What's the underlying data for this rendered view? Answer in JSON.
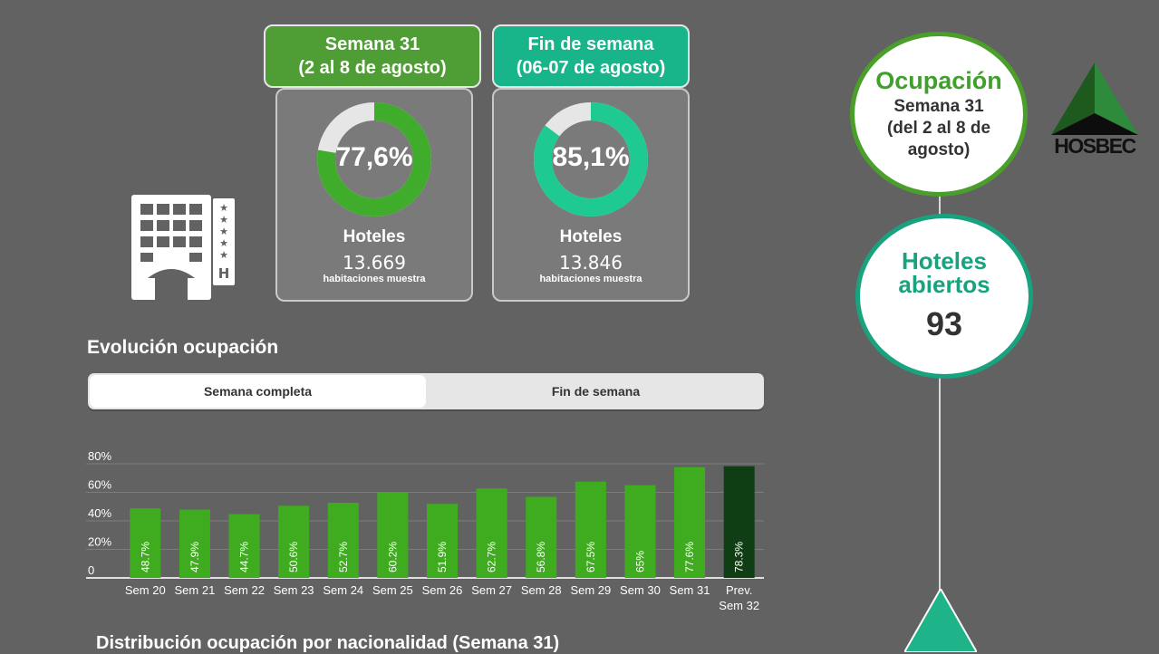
{
  "header": {
    "week": {
      "line1": "Semana 31",
      "line2": "(2 al 8 de agosto)"
    },
    "weekend": {
      "line1": "Fin de semana",
      "line2": "(06-07 de agosto)"
    }
  },
  "cards": [
    {
      "percent_label": "77,6%",
      "percent": 77.6,
      "title": "Hoteles",
      "rooms": "13.669",
      "rooms_label": "habitaciones muestra",
      "color": "#3fac2b"
    },
    {
      "percent_label": "85,1%",
      "percent": 85.1,
      "title": "Hoteles",
      "rooms": "13.846",
      "rooms_label": "habitaciones muestra",
      "color": "#1ec992"
    }
  ],
  "evolution": {
    "title": "Evolución ocupación",
    "tabs": [
      {
        "label": "Semana completa",
        "active": true
      },
      {
        "label": "Fin de semana",
        "active": false
      }
    ]
  },
  "chart_data": {
    "type": "bar",
    "categories": [
      "Sem 20",
      "Sem 21",
      "Sem 22",
      "Sem 23",
      "Sem 24",
      "Sem 25",
      "Sem 26",
      "Sem 27",
      "Sem 28",
      "Sem 29",
      "Sem 30",
      "Sem 31",
      "Prev. Sem 32"
    ],
    "values": [
      48.7,
      47.9,
      44.7,
      50.6,
      52.7,
      60.2,
      51.9,
      62.7,
      56.8,
      67.5,
      65,
      77.6,
      78.3
    ],
    "value_labels": [
      "48.7%",
      "47.9%",
      "44.7%",
      "50.6%",
      "52.7%",
      "60.2%",
      "51.9%",
      "62.7%",
      "56.8%",
      "67.5%",
      "65%",
      "77.6%",
      "78.3%"
    ],
    "yticks": [
      "0",
      "20%",
      "40%",
      "60%",
      "80%"
    ],
    "ylim": [
      0,
      80
    ],
    "colors": {
      "bar": "#3fac1f",
      "forecast": "#0f3d14"
    },
    "grid": true
  },
  "distribution": {
    "title": "Distribución ocupación por nacionalidad (Semana 31)"
  },
  "right": {
    "occupancy": {
      "title": "Ocupación",
      "sub1": "Semana 31",
      "sub2": "(del 2 al 8 de",
      "sub3": "agosto)"
    },
    "open_hotels": {
      "title1": "Hoteles",
      "title2": "abiertos",
      "count": "93"
    },
    "logo_text": "HOSBEC"
  }
}
